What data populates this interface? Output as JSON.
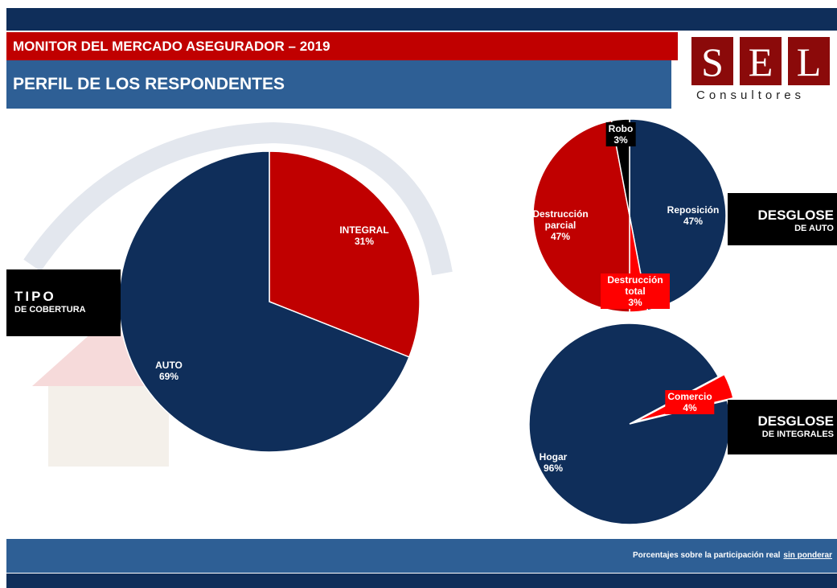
{
  "header": {
    "title": "MONITOR DEL MERCADO ASEGURADOR – 2019",
    "subtitle": "PERFIL DE LOS RESPONDENTES"
  },
  "logo": {
    "letters": [
      "S",
      "E",
      "L"
    ],
    "tagline": "Consultores"
  },
  "chart_data": [
    {
      "type": "pie",
      "title": "TIPO",
      "subtitle": "DE COBERTURA",
      "categories": [
        "INTEGRAL",
        "AUTO"
      ],
      "values": [
        31,
        69
      ],
      "value_labels": [
        "31%",
        "69%"
      ],
      "colors": [
        "#c00000",
        "#0f2e5a"
      ]
    },
    {
      "type": "pie",
      "title": "DESGLOSE",
      "subtitle": "DE AUTO",
      "categories": [
        "Reposición",
        "Destrucción total",
        "Destrucción parcial",
        "Robo"
      ],
      "values": [
        47,
        3,
        47,
        3
      ],
      "value_labels": [
        "47%",
        "3%",
        "47%",
        "3%"
      ],
      "colors": [
        "#0f2e5a",
        "#ff0000",
        "#c00000",
        "#000000"
      ]
    },
    {
      "type": "pie",
      "title": "DESGLOSE",
      "subtitle": "DE INTEGRALES",
      "categories": [
        "Comercio",
        "Hogar"
      ],
      "values": [
        4,
        96
      ],
      "value_labels": [
        "4%",
        "96%"
      ],
      "colors": [
        "#ff0000",
        "#0f2e5a"
      ]
    }
  ],
  "footer": {
    "note": "Porcentajes sobre la participación real",
    "link": "sin ponderar"
  }
}
